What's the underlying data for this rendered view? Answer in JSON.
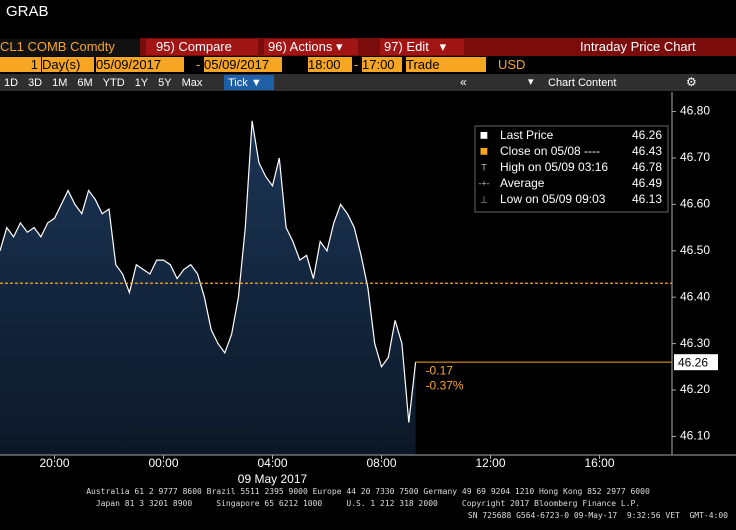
{
  "window_title": "GRAB",
  "toolbar": {
    "security": "CL1 COMB Comdty",
    "buttons": [
      "95) Compare",
      "96) Actions",
      "97) Edit"
    ],
    "title": "Intraday Price Chart"
  },
  "range_bar": {
    "period_count": "1",
    "period_unit": "Day(s)",
    "start_date": "05/09/2017",
    "separator": "-",
    "end_date": "05/09/2017",
    "start_time": "18:00",
    "end_time": "17:00",
    "field": "Trade",
    "currency": "USD"
  },
  "tabs": [
    "1D",
    "3D",
    "1M",
    "6M",
    "YTD",
    "1Y",
    "5Y",
    "Max"
  ],
  "active_tab": "Tick",
  "chart_content": "Chart Content",
  "chart_data": {
    "type": "area",
    "color": "#ffffff",
    "fill": "#1b3556",
    "x": [
      0,
      0.25,
      0.5,
      0.75,
      1,
      1.25,
      1.5,
      1.75,
      2,
      2.25,
      2.5,
      2.75,
      3,
      3.25,
      3.5,
      3.75,
      4,
      4.25,
      4.5,
      4.75,
      5,
      5.25,
      5.5,
      5.75,
      6,
      6.25,
      6.5,
      6.75,
      7,
      7.25,
      7.5,
      7.75,
      8,
      8.25,
      8.5,
      8.75,
      9,
      9.25,
      9.5,
      9.75,
      10,
      10.25,
      10.5,
      10.75,
      11,
      11.25,
      11.5,
      11.75,
      12,
      12.25,
      12.5,
      12.75,
      13,
      13.25,
      13.5,
      13.75,
      14,
      14.25,
      14.5,
      14.75,
      15,
      15.25
    ],
    "values": [
      46.5,
      46.55,
      46.53,
      46.56,
      46.54,
      46.55,
      46.53,
      46.56,
      46.57,
      46.6,
      46.63,
      46.6,
      46.58,
      46.63,
      46.61,
      46.58,
      46.59,
      46.47,
      46.45,
      46.41,
      46.47,
      46.46,
      46.45,
      46.48,
      46.48,
      46.47,
      46.44,
      46.46,
      46.47,
      46.45,
      46.4,
      46.33,
      46.3,
      46.28,
      46.32,
      46.4,
      46.55,
      46.78,
      46.69,
      46.66,
      46.64,
      46.7,
      46.55,
      46.52,
      46.48,
      46.49,
      46.44,
      46.52,
      46.5,
      46.56,
      46.6,
      46.58,
      46.55,
      46.49,
      46.42,
      46.3,
      46.25,
      46.27,
      46.35,
      46.3,
      46.13,
      46.26
    ],
    "xlim": [
      0,
      24.66
    ],
    "xticks": [
      {
        "value": 2,
        "label": "20:00"
      },
      {
        "value": 6,
        "label": "00:00"
      },
      {
        "value": 10,
        "label": "04:00"
      },
      {
        "value": 14,
        "label": "08:00"
      },
      {
        "value": 18,
        "label": "12:00"
      },
      {
        "value": 22,
        "label": "16:00"
      }
    ],
    "ylim": [
      46.06,
      46.84
    ],
    "yticks": [
      {
        "value": 46.1,
        "label": "46.10"
      },
      {
        "value": 46.2,
        "label": "46.20"
      },
      {
        "value": 46.3,
        "label": "46.30"
      },
      {
        "value": 46.4,
        "label": "46.40"
      },
      {
        "value": 46.5,
        "label": "46.50"
      },
      {
        "value": 46.6,
        "label": "46.60"
      },
      {
        "value": 46.7,
        "label": "46.70"
      },
      {
        "value": 46.8,
        "label": "46.80"
      }
    ],
    "date_label": "09 May 2017",
    "legend": [
      {
        "name": "Last Price",
        "value": 46.26
      },
      {
        "name": "Close on 05/08 ----",
        "value": 46.43
      },
      {
        "name": "High on 05/09 03:16",
        "value": 46.78
      },
      {
        "name": "Average",
        "value": 46.49
      },
      {
        "name": "Low on 05/09 09:03",
        "value": 46.13
      }
    ],
    "annotations": [
      "-0.17",
      "-0.37%"
    ]
  },
  "footer": [
    "Australia 61 2 9777 8600 Brazil 5511 2395 9000 Europe 44 20 7330 7500 Germany 49 69 9204 1210 Hong Kong 852 2977 6000",
    "Japan 81 3 3201 8900     Singapore 65 6212 1000     U.S. 1 212 318 2000     Copyright 2017 Bloomberg Finance L.P.",
    "SN 725688 G564-6723-0 09-May-17  9:32:56 VET  GMT-4:00"
  ]
}
